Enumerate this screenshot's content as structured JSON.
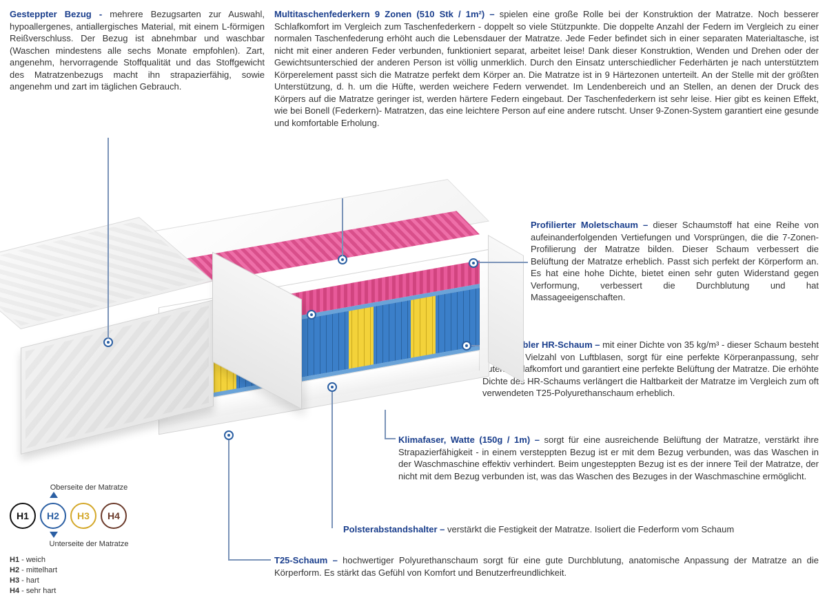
{
  "colors": {
    "title": "#1a3e8c",
    "text": "#333333",
    "leader": "#7a93b8",
    "spring_blue": "#3b7fc9",
    "spring_yellow": "#f3d23a",
    "foam_pink": "#e85a9a",
    "light_blue": "#6aa3d8"
  },
  "sections": {
    "cover": {
      "title": "Gesteppter Bezug - ",
      "text": "mehrere Bezugsarten zur Auswahl, hypoallergenes, antiallergisches Material, mit einem L-förmigen Reißverschluss. Der Bezug ist abnehmbar und waschbar (Waschen mindestens alle sechs Monate empfohlen). Zart, angenehm, hervorragende Stoffqualität und das Stoffgewicht des Matratzenbezugs macht ihn strapazierfähig, sowie angenehm und zart im täglichen Gebrauch."
    },
    "springs": {
      "title": "Multitaschenfederkern 9 Zonen (510 Stk / 1m²) – ",
      "text": "spielen eine große Rolle bei der Konstruktion der Matratze. Noch besserer Schlafkomfort im Vergleich zum Taschenfederkern - doppelt so viele Stützpunkte. Die doppelte Anzahl der Federn im Vergleich zu einer normalen Taschenfederung erhöht auch die Lebensdauer der Matratze. Jede Feder befindet sich in einer separaten Materialtasche, ist nicht mit einer anderen Feder verbunden, funktioniert separat, arbeitet leise! Dank dieser Konstruktion, Wenden und Drehen oder der Gewichtsunterschied der anderen Person ist völlig unmerklich. Durch den Einsatz unterschiedlicher Federhärten je nach unterstütztem Körperelement passt sich die Matratze perfekt dem Körper an. Die Matratze ist in 9 Härtezonen unterteilt. An der Stelle mit der größten Unterstützung, d. h. um die Hüfte, werden weichere Federn verwendet. Im Lendenbereich und an Stellen, an denen der Druck des Körpers auf die Matratze geringer ist, werden härtere Federn eingebaut. Der Taschenfederkern ist sehr leise. Hier gibt es keinen Effekt, wie bei Bonell (Federkern)- Matratzen, das eine leichtere Person auf eine andere rutscht. Unser 9-Zonen-System garantiert eine gesunde und komfortable Erholung."
    },
    "molet": {
      "title": "Profilierter Moletschaum – ",
      "text": "dieser Schaumstoff hat eine Reihe von aufeinanderfolgenden Vertiefungen und Vorsprüngen, die die 7-Zonen-Profilierung der Matratze bilden. Dieser Schaum verbessert die Belüftung der Matratze erheblich. Passt sich perfekt der Körperform an. Es hat eine hohe Dichte, bietet einen sehr guten Widerstand gegen Verformung, verbessert die Durchblutung und hat Massageeigenschaften."
    },
    "hr": {
      "title": "Hochflexibler HR-Schaum – ",
      "text": "mit einer Dichte von 35 kg/m³ - dieser Schaum besteht aus einer Vielzahl von Luftblasen, sorgt für eine perfekte Körperanpassung, sehr guten Schlafkomfort und garantiert eine perfekte Belüftung der Matratze. Die erhöhte Dichte des HR-Schaums verlängert die Haltbarkeit der Matratze im Vergleich zum oft verwendeten T25-Polyurethanschaum erheblich."
    },
    "klima": {
      "title": "Klimafaser, Watte (150g / 1m) – ",
      "text": "sorgt für eine ausreichende Belüftung der Matratze, verstärkt ihre Strapazierfähigkeit - in einem versteppten Bezug ist er mit dem Bezug verbunden, was das Waschen in der Waschmaschine effektiv verhindert. Beim ungesteppten Bezug ist es der innere Teil der Matratze, der nicht mit dem Bezug verbunden ist, was das Waschen des Bezuges in der Waschmaschine ermöglicht."
    },
    "polster": {
      "title": "Polsterabstandshalter – ",
      "text": "verstärkt die Festigkeit der Matratze. Isoliert die Federform vom Schaum"
    },
    "t25": {
      "title": "T25-Schaum – ",
      "text": "hochwertiger Polyurethanschaum sorgt für eine gute Durchblutung, anatomische Anpassung der Matratze an die Körperform. Es stärkt das Gefühl von Komfort und Benutzerfreundlichkeit."
    }
  },
  "mattress": {
    "spring_zones_percent": [
      {
        "color": "blue",
        "start": 0,
        "width": 14
      },
      {
        "color": "yellow",
        "start": 14,
        "width": 8
      },
      {
        "color": "blue",
        "start": 22,
        "width": 12
      },
      {
        "color": "yellow",
        "start": 34,
        "width": 8
      },
      {
        "color": "blue",
        "start": 42,
        "width": 16
      },
      {
        "color": "yellow",
        "start": 58,
        "width": 8
      },
      {
        "color": "blue",
        "start": 66,
        "width": 12
      },
      {
        "color": "yellow",
        "start": 78,
        "width": 8
      },
      {
        "color": "blue",
        "start": 86,
        "width": 14
      }
    ]
  },
  "legend": {
    "top_label": "Oberseite der Matratze",
    "bottom_label": "Unterseite der Matratze",
    "circles": [
      {
        "label": "H1",
        "color": "#111111"
      },
      {
        "label": "H2",
        "color": "#2b5fa3"
      },
      {
        "label": "H3",
        "color": "#d4a82a"
      },
      {
        "label": "H4",
        "color": "#6b3a2a"
      }
    ],
    "list": [
      {
        "k": "H1",
        "v": " - weich"
      },
      {
        "k": "H2",
        "v": " - mittelhart"
      },
      {
        "k": "H3",
        "v": " - hart"
      },
      {
        "k": "H4",
        "v": " - sehr hart"
      }
    ]
  }
}
